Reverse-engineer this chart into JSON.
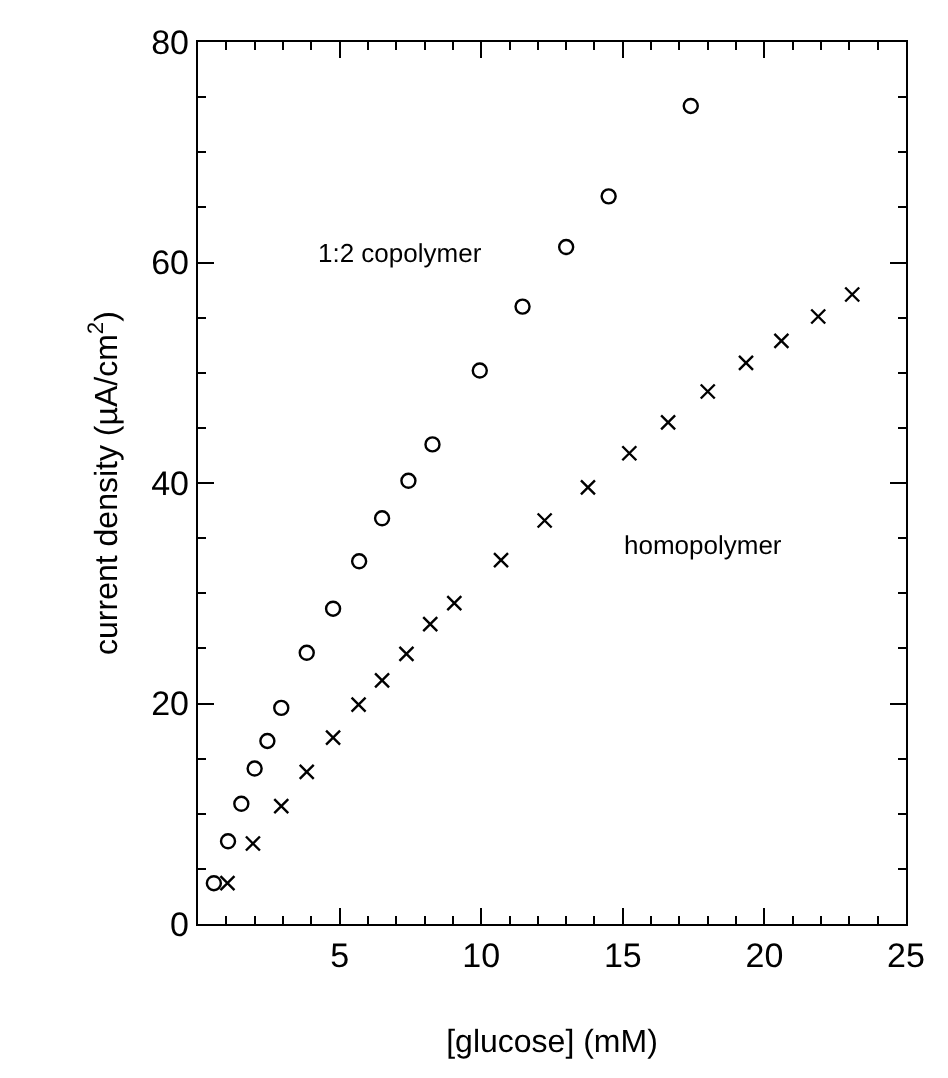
{
  "chart_data": {
    "type": "scatter",
    "xlabel": "[glucose] (mM)",
    "ylabel": "current density (µA/cm$^{2}$)",
    "xlim": [
      0,
      25
    ],
    "xticks": [
      5,
      10,
      15,
      20,
      25
    ],
    "ylim": [
      0,
      80
    ],
    "yticks": [
      0,
      20,
      40,
      60,
      80
    ],
    "legend": false,
    "series": [
      {
        "name": "1:2 copolymer",
        "color": "#000000",
        "marker": "circle",
        "x": [
          0.56,
          1.06,
          1.53,
          2.0,
          2.45,
          2.94,
          3.84,
          4.77,
          5.69,
          6.5,
          7.43,
          8.28,
          9.95,
          11.46,
          13.0,
          14.5,
          17.4
        ],
        "values": [
          3.7,
          7.5,
          10.9,
          14.1,
          16.6,
          19.6,
          24.6,
          28.6,
          32.9,
          36.8,
          40.2,
          43.5,
          50.2,
          56.0,
          61.4,
          66.0,
          74.2
        ]
      },
      {
        "name": "homopolymer",
        "color": "#000000",
        "marker": "cross",
        "x": [
          1.04,
          1.94,
          2.94,
          3.84,
          4.77,
          5.67,
          6.5,
          7.36,
          8.2,
          9.05,
          10.7,
          12.24,
          13.77,
          15.23,
          16.6,
          18.0,
          19.35,
          20.6,
          21.9,
          23.1
        ],
        "values": [
          3.7,
          7.3,
          10.7,
          13.8,
          16.9,
          19.9,
          22.1,
          24.5,
          27.2,
          29.1,
          33.0,
          36.6,
          39.6,
          42.7,
          45.5,
          48.3,
          50.9,
          52.9,
          55.1,
          57.1
        ]
      }
    ]
  }
}
